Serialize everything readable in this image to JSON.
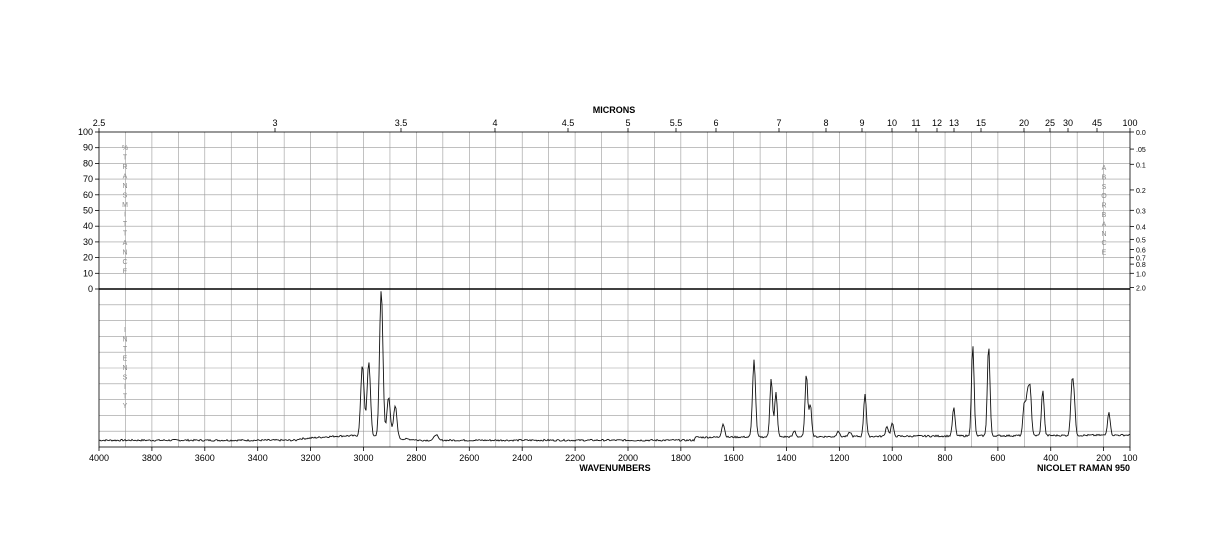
{
  "chart_data": {
    "type": "line",
    "title": "",
    "instrument": "NICOLET RAMAN 950",
    "xlabel": "WAVENUMBERS",
    "x2label": "MICRONS",
    "upper_left_label": "% TRANSMITTANCE",
    "upper_right_label": "ABSORBANCE",
    "lower_left_label": "INTENSITY",
    "xlim": [
      4000,
      100
    ],
    "x_ticks": [
      4000,
      3800,
      3600,
      3400,
      3200,
      3000,
      2800,
      2600,
      2400,
      2200,
      2000,
      1800,
      1600,
      1400,
      1200,
      1000,
      800,
      600,
      400,
      200,
      100
    ],
    "micron_ticks": [
      "2.5",
      "3",
      "3.5",
      "4",
      "4.5",
      "5",
      "5.5",
      "6",
      "7",
      "8",
      "9",
      "10",
      "11",
      "12",
      "13",
      "15",
      "20",
      "25",
      "30",
      "45",
      "100"
    ],
    "transmittance_ticks": [
      100,
      90,
      80,
      70,
      60,
      50,
      40,
      30,
      20,
      10,
      0
    ],
    "absorbance_ticks": [
      "0.0",
      ".05",
      "0.1",
      "0.2",
      "0.3",
      "0.4",
      "0.5",
      "0.6",
      "0.7",
      "0.8",
      "1.0",
      "2.0"
    ],
    "grid": true,
    "series": [
      {
        "peaks": [
          {
            "x": 3004,
            "y": 0.48
          },
          {
            "x": 2980,
            "y": 0.5
          },
          {
            "x": 2933,
            "y": 1.0
          },
          {
            "x": 2905,
            "y": 0.28
          },
          {
            "x": 2880,
            "y": 0.22
          },
          {
            "x": 2726,
            "y": 0.04
          },
          {
            "x": 1640,
            "y": 0.09
          },
          {
            "x": 1523,
            "y": 0.52
          },
          {
            "x": 1458,
            "y": 0.4
          },
          {
            "x": 1440,
            "y": 0.3
          },
          {
            "x": 1370,
            "y": 0.04
          },
          {
            "x": 1325,
            "y": 0.42
          },
          {
            "x": 1310,
            "y": 0.22
          },
          {
            "x": 1205,
            "y": 0.04
          },
          {
            "x": 1160,
            "y": 0.03
          },
          {
            "x": 1103,
            "y": 0.29
          },
          {
            "x": 1020,
            "y": 0.07
          },
          {
            "x": 1000,
            "y": 0.09
          },
          {
            "x": 767,
            "y": 0.19
          },
          {
            "x": 695,
            "y": 0.61
          },
          {
            "x": 635,
            "y": 0.61
          },
          {
            "x": 500,
            "y": 0.22
          },
          {
            "x": 488,
            "y": 0.26
          },
          {
            "x": 478,
            "y": 0.31
          },
          {
            "x": 430,
            "y": 0.31
          },
          {
            "x": 320,
            "y": 0.31
          },
          {
            "x": 312,
            "y": 0.23
          },
          {
            "x": 180,
            "y": 0.16
          }
        ]
      }
    ]
  }
}
